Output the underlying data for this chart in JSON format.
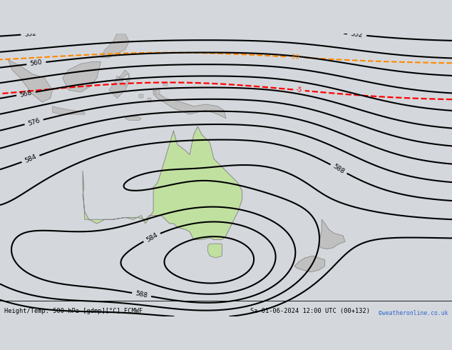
{
  "title_left": "Height/Temp. 500 hPa [gdmp][°C] ECMWF",
  "title_right": "Sa 01-06-2024 12:00 UTC (00+132)",
  "watermark": "©weatheronline.co.uk",
  "bg_color": "#d4d8dd",
  "ocean_color": "#d0d4da",
  "aus_fill": "#c0e0a0",
  "land_fill": "#c0c0c0",
  "fig_width": 6.34,
  "fig_height": 4.9,
  "dpi": 100,
  "lon_min": 93,
  "lon_max": 205,
  "lat_min": -58,
  "lat_max": 12
}
